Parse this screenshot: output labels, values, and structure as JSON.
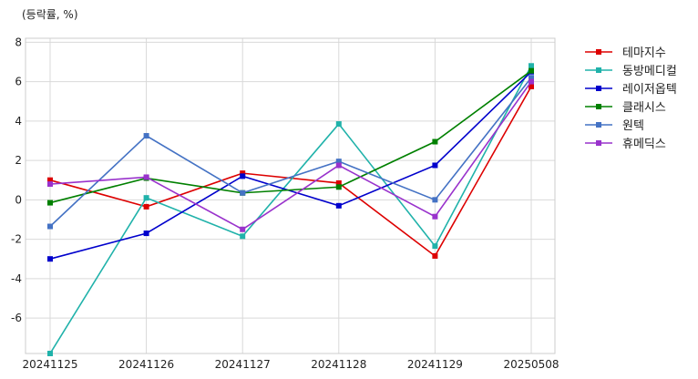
{
  "chart_data": {
    "type": "line",
    "ylabel": "(등락률, %)",
    "x": [
      "20241125",
      "20241126",
      "20241127",
      "20241128",
      "20241129",
      "20250508"
    ],
    "ylim": [
      -7.8,
      8.2
    ],
    "yticks": [
      -6,
      -4,
      -2,
      0,
      2,
      4,
      6,
      8
    ],
    "grid": true,
    "legend_position": "outside-right",
    "series": [
      {
        "name": "테마지수",
        "color": "#dd0000",
        "values": [
          1.0,
          -0.35,
          1.35,
          0.85,
          -2.85,
          5.75
        ]
      },
      {
        "name": "동방메디컬",
        "color": "#20b2aa",
        "values": [
          -7.8,
          0.1,
          -1.85,
          3.85,
          -2.35,
          6.8
        ]
      },
      {
        "name": "레이저옵텍",
        "color": "#0000cc",
        "values": [
          -3.0,
          -1.7,
          1.2,
          -0.3,
          1.75,
          6.5
        ]
      },
      {
        "name": "클래시스",
        "color": "#008000",
        "values": [
          -0.15,
          1.1,
          0.35,
          0.65,
          2.95,
          6.55
        ]
      },
      {
        "name": "원텍",
        "color": "#4472c4",
        "values": [
          -1.35,
          3.25,
          0.35,
          1.95,
          0.0,
          6.2
        ]
      },
      {
        "name": "휴메딕스",
        "color": "#9932cc",
        "values": [
          0.8,
          1.15,
          -1.5,
          1.75,
          -0.85,
          6.0
        ]
      }
    ]
  }
}
